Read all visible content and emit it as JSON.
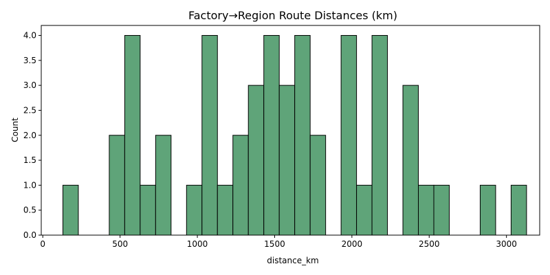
{
  "chart_data": {
    "type": "bar",
    "title": "Factory→Region Route Distances (km)",
    "xlabel": "distance_km",
    "ylabel": "Count",
    "xlim": [
      -10,
      3215
    ],
    "ylim": [
      0,
      4.2
    ],
    "xticks": [
      0,
      500,
      1000,
      1500,
      2000,
      2500,
      3000
    ],
    "yticks": [
      0.0,
      0.5,
      1.0,
      1.5,
      2.0,
      2.5,
      3.0,
      3.5,
      4.0
    ],
    "ytick_labels": [
      "0.0",
      "0.5",
      "1.0",
      "1.5",
      "2.0",
      "2.5",
      "3.0",
      "3.5",
      "4.0"
    ],
    "grid": false,
    "bar_color": "#5fa479",
    "edge_color": "#000000",
    "bins": [
      {
        "x0": 130,
        "x1": 230,
        "count": 1
      },
      {
        "x0": 230,
        "x1": 330,
        "count": 0
      },
      {
        "x0": 330,
        "x1": 430,
        "count": 0
      },
      {
        "x0": 430,
        "x1": 530,
        "count": 2
      },
      {
        "x0": 530,
        "x1": 630,
        "count": 4
      },
      {
        "x0": 630,
        "x1": 730,
        "count": 1
      },
      {
        "x0": 730,
        "x1": 830,
        "count": 2
      },
      {
        "x0": 830,
        "x1": 930,
        "count": 0
      },
      {
        "x0": 930,
        "x1": 1030,
        "count": 1
      },
      {
        "x0": 1030,
        "x1": 1130,
        "count": 4
      },
      {
        "x0": 1130,
        "x1": 1230,
        "count": 1
      },
      {
        "x0": 1230,
        "x1": 1330,
        "count": 2
      },
      {
        "x0": 1330,
        "x1": 1430,
        "count": 3
      },
      {
        "x0": 1430,
        "x1": 1530,
        "count": 4
      },
      {
        "x0": 1530,
        "x1": 1630,
        "count": 3
      },
      {
        "x0": 1630,
        "x1": 1730,
        "count": 4
      },
      {
        "x0": 1730,
        "x1": 1830,
        "count": 2
      },
      {
        "x0": 1830,
        "x1": 1930,
        "count": 0
      },
      {
        "x0": 1930,
        "x1": 2030,
        "count": 4
      },
      {
        "x0": 2030,
        "x1": 2130,
        "count": 1
      },
      {
        "x0": 2130,
        "x1": 2230,
        "count": 4
      },
      {
        "x0": 2230,
        "x1": 2330,
        "count": 0
      },
      {
        "x0": 2330,
        "x1": 2430,
        "count": 3
      },
      {
        "x0": 2430,
        "x1": 2530,
        "count": 1
      },
      {
        "x0": 2530,
        "x1": 2630,
        "count": 1
      },
      {
        "x0": 2630,
        "x1": 2730,
        "count": 0
      },
      {
        "x0": 2730,
        "x1": 2830,
        "count": 0
      },
      {
        "x0": 2830,
        "x1": 2930,
        "count": 1
      },
      {
        "x0": 2930,
        "x1": 3030,
        "count": 0
      },
      {
        "x0": 3030,
        "x1": 3130,
        "count": 1
      }
    ]
  }
}
